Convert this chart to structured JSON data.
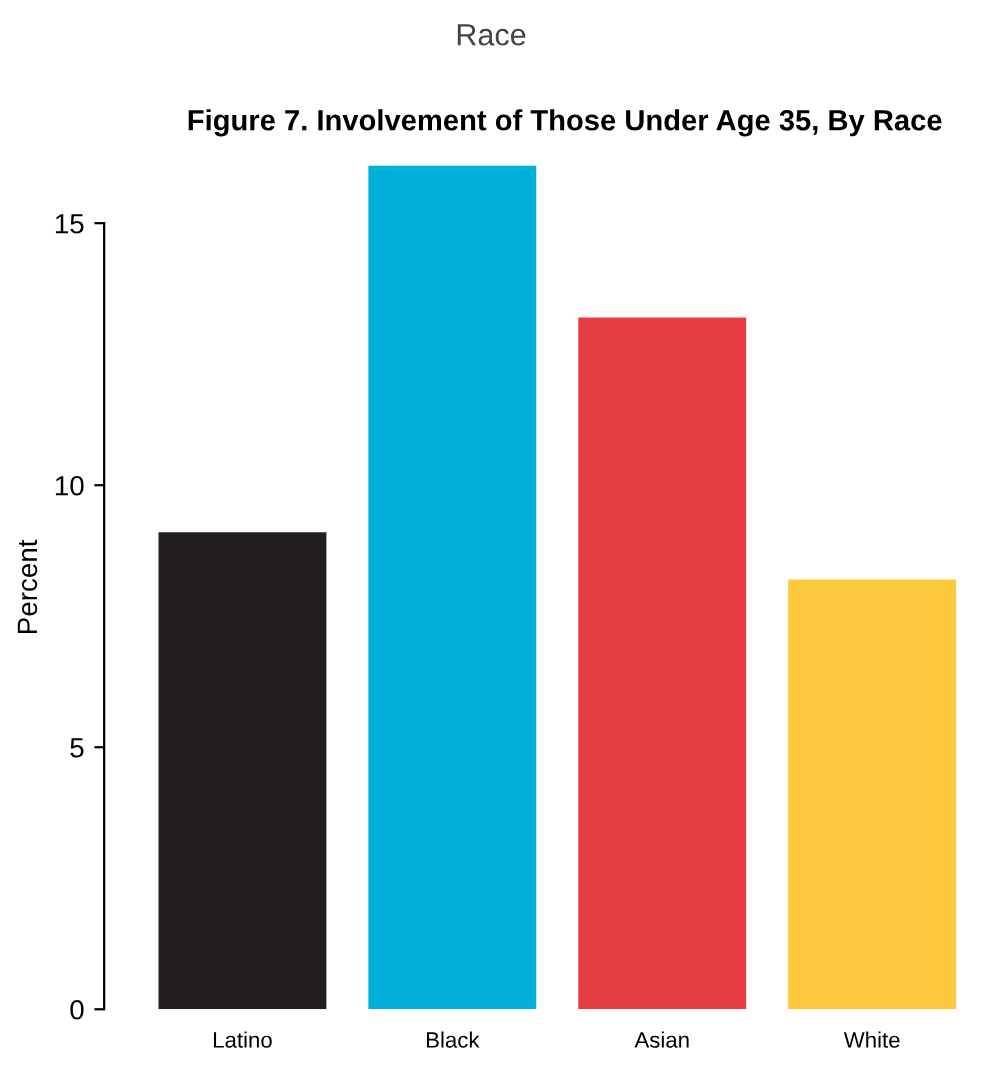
{
  "chart_data": {
    "type": "bar",
    "title": "Race",
    "subtitle": "Figure 7. Involvement of Those Under Age 35, By Race",
    "ylabel": "Percent",
    "categories": [
      "Latino",
      "Black",
      "Asian",
      "White"
    ],
    "values": [
      9.1,
      16.1,
      13.2,
      8.2
    ],
    "colors": [
      "#231f20",
      "#00b0d8",
      "#e63c44",
      "#fcc83c"
    ],
    "ylim": [
      0,
      16.1
    ],
    "yticks": [
      0,
      5,
      10,
      15
    ],
    "grid": false,
    "legend": false
  }
}
